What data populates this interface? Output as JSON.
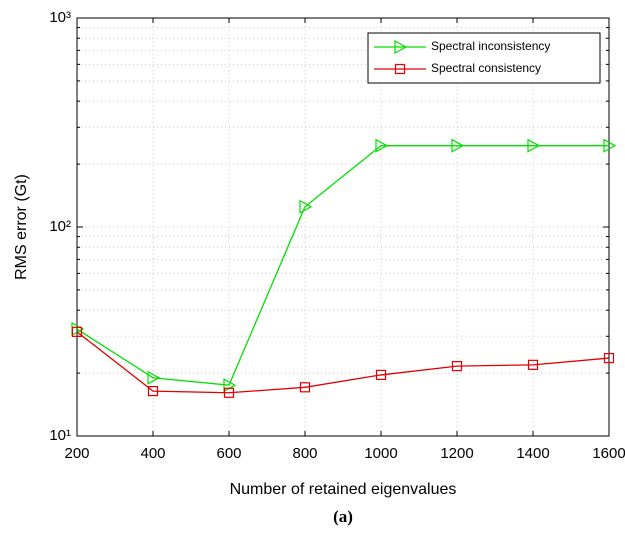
{
  "chart_data": {
    "type": "line",
    "x_label": "Number of retained eigenvalues",
    "y_label": "RMS error (Gt)",
    "caption": "(a)",
    "x": [
      200,
      400,
      600,
      800,
      1000,
      1200,
      1400,
      1600
    ],
    "series": [
      {
        "name": "Spectral inconsistency",
        "color": "#00e000",
        "marker": "triangle-right",
        "values": [
          32.5,
          19,
          17.5,
          125,
          245,
          245,
          245,
          245
        ]
      },
      {
        "name": "Spectral consistency",
        "color": "#e00000",
        "marker": "square",
        "values": [
          31.5,
          16.4,
          16.1,
          17.1,
          19.6,
          21.6,
          21.9,
          23.6
        ]
      }
    ],
    "xlim": [
      200,
      1600
    ],
    "xticks": [
      200,
      400,
      600,
      800,
      1000,
      1200,
      1400,
      1600
    ],
    "ylim": [
      10,
      1000
    ],
    "log_y": true,
    "yticks": [
      {
        "value": 10,
        "label": "10¹"
      },
      {
        "value": 100,
        "label": "10²"
      },
      {
        "value": 1000,
        "label": "10³"
      }
    ],
    "y_minor_ticks": [
      20,
      30,
      40,
      50,
      60,
      70,
      80,
      90,
      200,
      300,
      400,
      500,
      600,
      700,
      800,
      900
    ],
    "grid": true,
    "legend": "top-right"
  }
}
